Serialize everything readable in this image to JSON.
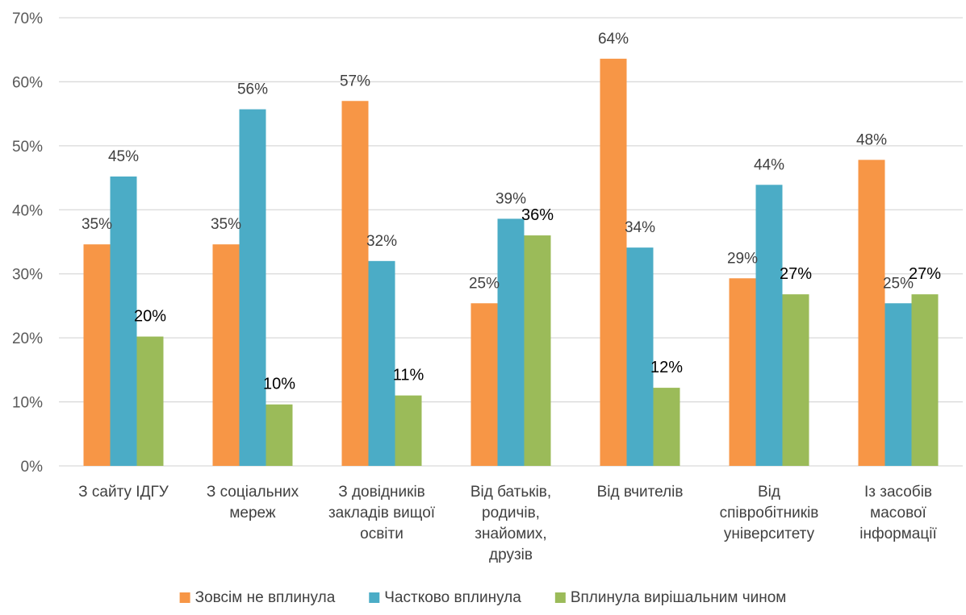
{
  "chart_data": {
    "type": "bar",
    "categories": [
      [
        "З сайту ІДГУ"
      ],
      [
        "З соціальних",
        "мереж"
      ],
      [
        "З довідників",
        "закладів вищої",
        "освіти"
      ],
      [
        "Від батьків,",
        "родичів,",
        "знайомих,",
        "друзів"
      ],
      [
        "Від вчителів"
      ],
      [
        "Від",
        "співробітників",
        "університету"
      ],
      [
        "Із засобів",
        "масової",
        "інформації"
      ]
    ],
    "series": [
      {
        "name": "Зовсім не вплинула",
        "color": "#F79646",
        "values": [
          34.6,
          34.6,
          57.0,
          25.4,
          63.6,
          29.3,
          47.8
        ],
        "labels": [
          "35%",
          "35%",
          "57%",
          "25%",
          "64%",
          "29%",
          "48%"
        ]
      },
      {
        "name": "Частково вплинула",
        "color": "#4BACC6",
        "values": [
          45.2,
          55.7,
          32.0,
          38.6,
          34.1,
          43.9,
          25.4
        ],
        "labels": [
          "45%",
          "56%",
          "32%",
          "39%",
          "34%",
          "44%",
          "25%"
        ]
      },
      {
        "name": "Вплинула вирішальним чином",
        "color": "#9BBB59",
        "values": [
          20.2,
          9.6,
          11.0,
          36.0,
          12.2,
          26.8,
          26.8
        ],
        "labels": [
          "20%",
          "10%",
          "11%",
          "36%",
          "12%",
          "27%",
          "27%"
        ]
      }
    ],
    "yticks": [
      "0%",
      "10%",
      "20%",
      "30%",
      "40%",
      "50%",
      "60%",
      "70%"
    ],
    "ylim": [
      0,
      70
    ],
    "grid": true,
    "legend": "bottom",
    "gridline_color": "#D9D9D9",
    "title": "",
    "xlabel": "",
    "ylabel": ""
  }
}
